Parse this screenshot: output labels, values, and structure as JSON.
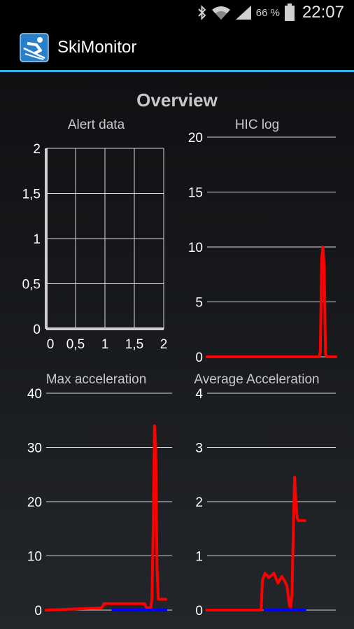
{
  "status_bar": {
    "icons": [
      "bluetooth-icon",
      "wifi-icon",
      "signal-icon",
      "battery-icon"
    ],
    "battery": "66 %",
    "time": "22:07"
  },
  "app": {
    "title": "SkiMonitor",
    "icon": "skier-icon"
  },
  "overview": {
    "heading": "Overview"
  },
  "colors": {
    "accent": "#34b5e5",
    "series_red": "#ff0000",
    "series_blue": "#0000ff",
    "grid": "#d8d8d8"
  },
  "chart_data": [
    {
      "type": "scatter",
      "title": "Alert data",
      "grid": true,
      "xlim": [
        0,
        2
      ],
      "ylim": [
        0,
        2
      ],
      "x_ticks": [
        "0",
        "0,5",
        "1",
        "1,5",
        "2"
      ],
      "y_ticks": [
        "0",
        "0,5",
        "1",
        "1,5",
        "2"
      ],
      "series": []
    },
    {
      "type": "line",
      "title": "HIC log",
      "grid": true,
      "ylim": [
        0,
        20
      ],
      "y_ticks": [
        "0",
        "5",
        "10",
        "15",
        "20"
      ],
      "series": [
        {
          "color": "#ff0000",
          "x": [
            0,
            87,
            88,
            89,
            90,
            91,
            92,
            93,
            100
          ],
          "y": [
            0,
            0,
            0.5,
            9,
            10,
            8,
            0.3,
            0,
            0
          ]
        }
      ]
    },
    {
      "type": "line",
      "title": "Max acceleration",
      "grid": true,
      "ylim": [
        0,
        40
      ],
      "y_ticks": [
        "0",
        "10",
        "20",
        "30",
        "40"
      ],
      "series": [
        {
          "color": "#ff0000",
          "x": [
            0,
            44,
            46,
            78,
            80,
            83,
            84,
            85,
            86,
            87,
            88,
            89,
            90,
            95
          ],
          "y": [
            0,
            0.4,
            1.2,
            1.2,
            0.4,
            0.4,
            2,
            15,
            34,
            30,
            8,
            2,
            2,
            2
          ]
        },
        {
          "color": "#0000ff",
          "x": [
            53,
            95
          ],
          "y": [
            0,
            0
          ]
        }
      ]
    },
    {
      "type": "line",
      "title": "Average Acceleration",
      "grid": true,
      "ylim": [
        0,
        4
      ],
      "y_ticks": [
        "0",
        "1",
        "2",
        "3",
        "4"
      ],
      "series": [
        {
          "color": "#ff0000",
          "x": [
            0,
            42,
            43,
            45,
            48,
            52,
            55,
            58,
            60,
            62,
            64,
            65,
            66,
            67,
            68,
            69,
            70,
            71,
            72,
            73,
            76
          ],
          "y": [
            0,
            0,
            0.55,
            0.68,
            0.6,
            0.68,
            0.5,
            0.62,
            0.55,
            0.45,
            0.08,
            0.06,
            0.3,
            1.5,
            2.45,
            2.0,
            1.7,
            1.65,
            1.65,
            1.65,
            1.65
          ]
        },
        {
          "color": "#0000ff",
          "x": [
            45,
            76
          ],
          "y": [
            0,
            0
          ]
        }
      ]
    }
  ]
}
